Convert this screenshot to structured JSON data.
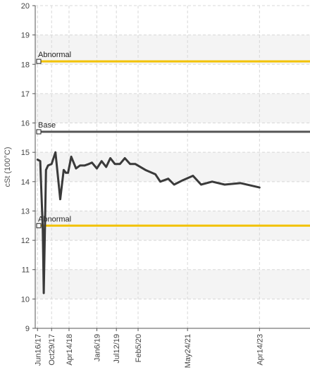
{
  "chart_data": {
    "type": "line",
    "ylabel": "cSt (100°C)",
    "ylim": [
      9,
      20
    ],
    "yticks": [
      9,
      10,
      11,
      12,
      13,
      14,
      15,
      16,
      17,
      18,
      19,
      20
    ],
    "xlim": [
      "2017-05-25",
      "2024-08-10"
    ],
    "xticks": [
      {
        "label": "Jun16/17",
        "date": "2017-06-16"
      },
      {
        "label": "Oct29/17",
        "date": "2017-10-29"
      },
      {
        "label": "Apr14/18",
        "date": "2018-04-14"
      },
      {
        "label": "Jan6/19",
        "date": "2019-01-06"
      },
      {
        "label": "Jul12/19",
        "date": "2019-07-12"
      },
      {
        "label": "Feb5/20",
        "date": "2020-02-05"
      },
      {
        "label": "May24/21",
        "date": "2021-05-24"
      },
      {
        "label": "Apr14/23",
        "date": "2023-04-14"
      }
    ],
    "grid": true,
    "reference_lines": [
      {
        "label": "Abnormal",
        "value": 18.1,
        "color": "#f2c200"
      },
      {
        "label": "Base",
        "value": 15.7,
        "color": "#555555"
      },
      {
        "label": "Abnormal",
        "value": 12.5,
        "color": "#f2c200"
      }
    ],
    "series": [
      {
        "color": "#3a3a3a",
        "points": [
          {
            "x": "2017-06-16",
            "y": 14.75
          },
          {
            "x": "2017-07-12",
            "y": 14.7
          },
          {
            "x": "2017-08-05",
            "y": 12.4
          },
          {
            "x": "2017-08-15",
            "y": 10.2
          },
          {
            "x": "2017-09-05",
            "y": 14.4
          },
          {
            "x": "2017-09-25",
            "y": 14.55
          },
          {
            "x": "2017-10-29",
            "y": 14.6
          },
          {
            "x": "2017-12-05",
            "y": 15.0
          },
          {
            "x": "2018-01-20",
            "y": 13.4
          },
          {
            "x": "2018-02-22",
            "y": 14.4
          },
          {
            "x": "2018-03-15",
            "y": 14.3
          },
          {
            "x": "2018-04-05",
            "y": 14.3
          },
          {
            "x": "2018-05-05",
            "y": 14.85
          },
          {
            "x": "2018-06-20",
            "y": 14.45
          },
          {
            "x": "2018-07-28",
            "y": 14.55
          },
          {
            "x": "2018-09-10",
            "y": 14.55
          },
          {
            "x": "2018-10-20",
            "y": 14.6
          },
          {
            "x": "2018-11-20",
            "y": 14.65
          },
          {
            "x": "2019-01-06",
            "y": 14.45
          },
          {
            "x": "2019-02-20",
            "y": 14.7
          },
          {
            "x": "2019-04-05",
            "y": 14.5
          },
          {
            "x": "2019-05-15",
            "y": 14.8
          },
          {
            "x": "2019-06-28",
            "y": 14.6
          },
          {
            "x": "2019-08-15",
            "y": 14.6
          },
          {
            "x": "2019-10-01",
            "y": 14.8
          },
          {
            "x": "2019-11-20",
            "y": 14.6
          },
          {
            "x": "2020-01-10",
            "y": 14.6
          },
          {
            "x": "2020-04-15",
            "y": 14.4
          },
          {
            "x": "2020-07-20",
            "y": 14.25
          },
          {
            "x": "2020-09-05",
            "y": 14.0
          },
          {
            "x": "2020-11-20",
            "y": 14.1
          },
          {
            "x": "2021-01-15",
            "y": 13.9
          },
          {
            "x": "2021-04-10",
            "y": 14.05
          },
          {
            "x": "2021-07-15",
            "y": 14.2
          },
          {
            "x": "2021-10-01",
            "y": 13.9
          },
          {
            "x": "2022-01-15",
            "y": 14.0
          },
          {
            "x": "2022-05-15",
            "y": 13.9
          },
          {
            "x": "2022-10-15",
            "y": 13.95
          },
          {
            "x": "2023-04-14",
            "y": 13.8
          }
        ]
      }
    ]
  }
}
